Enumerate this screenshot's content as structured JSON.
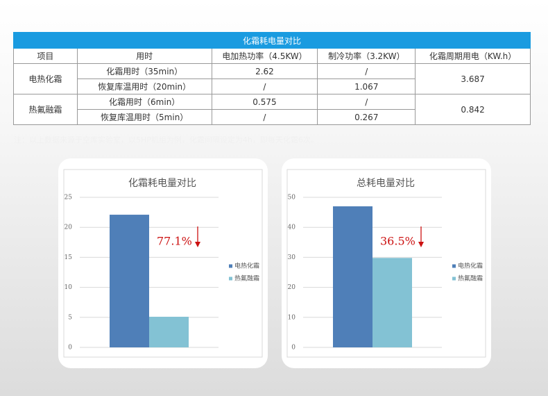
{
  "table": {
    "title": "化霜耗电量对比",
    "header": [
      "项目",
      "用时",
      "电加热功率（4.5KW）",
      "制冷功率（3.2KW）",
      "化霜周期用电（KW.h）"
    ],
    "groups": [
      {
        "name": "电热化霜",
        "total": "3.687",
        "rows": [
          [
            "化霜用时（35min）",
            "2.62",
            "/"
          ],
          [
            "恢复库温用时（20min）",
            "/",
            "1.067"
          ]
        ]
      },
      {
        "name": "热氟融霜",
        "total": "0.842",
        "rows": [
          [
            "化霜用时（6min）",
            "0.575",
            "/"
          ],
          [
            "恢复库温用时（5min）",
            "/",
            "0.267"
          ]
        ]
      }
    ]
  },
  "note": "注：以上数据来源于空库实验室，以5HP机组为例，化霜间隔设定为4h，即每天化霜6次。",
  "chart_data": [
    {
      "type": "bar",
      "title": "化霜耗电量对比",
      "categories": [
        null
      ],
      "series": [
        {
          "name": "电热化霜",
          "color": "#4f7fb8",
          "values": [
            22.1
          ]
        },
        {
          "name": "热氟融霜",
          "color": "#83c2d4",
          "values": [
            5.1
          ]
        }
      ],
      "ylim": [
        0,
        25
      ],
      "yticks": [
        0,
        5,
        10,
        15,
        20,
        25
      ],
      "grid": true,
      "legend": "right",
      "annotation": "77.1%"
    },
    {
      "type": "bar",
      "title": "总耗电量对比",
      "categories": [
        null
      ],
      "series": [
        {
          "name": "电热化霜",
          "color": "#4f7fb8",
          "values": [
            47
          ]
        },
        {
          "name": "热氟融霜",
          "color": "#83c2d4",
          "values": [
            29.8
          ]
        }
      ],
      "ylim": [
        0,
        50
      ],
      "yticks": [
        0,
        10,
        20,
        30,
        40,
        50
      ],
      "grid": true,
      "legend": "right",
      "annotation": "36.5%"
    }
  ]
}
